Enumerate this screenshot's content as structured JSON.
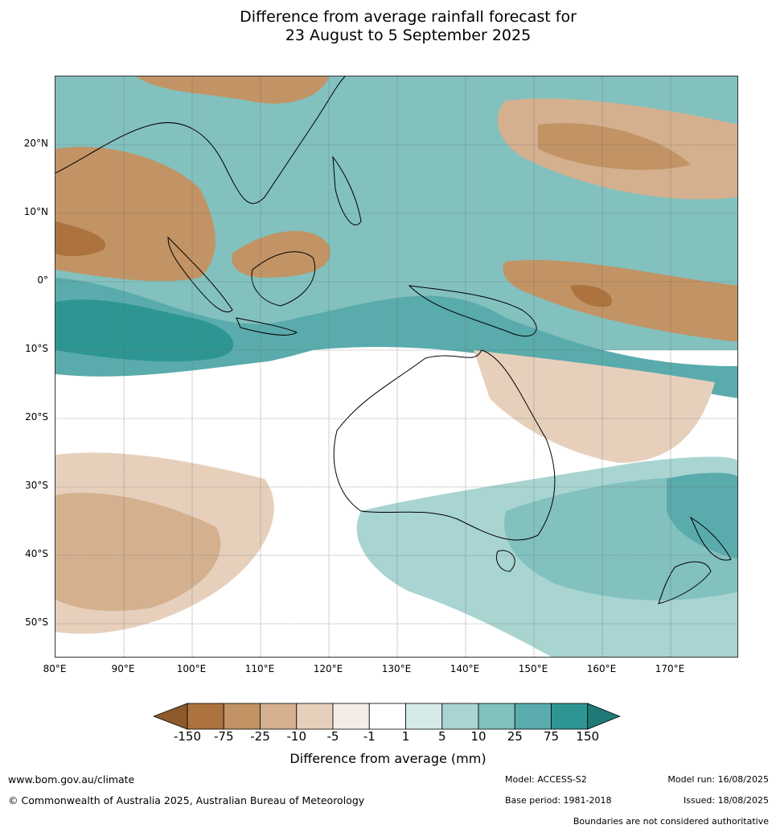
{
  "title": {
    "line1": "Difference from average rainfall forecast for",
    "line2": "23 August to 5 September 2025"
  },
  "map": {
    "lat_labels": [
      "20°N",
      "10°N",
      "0°",
      "10°S",
      "20°S",
      "30°S",
      "40°S",
      "50°S"
    ],
    "lon_labels": [
      "80°E",
      "90°E",
      "100°E",
      "110°E",
      "120°E",
      "130°E",
      "140°E",
      "150°E",
      "160°E",
      "170°E"
    ]
  },
  "legend": {
    "title": "Difference from average (mm)",
    "ticks": [
      "-150",
      "-75",
      "-25",
      "-10",
      "-5",
      "-1",
      "1",
      "5",
      "10",
      "25",
      "75",
      "150"
    ],
    "colors": [
      "#8c5a2b",
      "#ac733f",
      "#c29364",
      "#d4b08f",
      "#e6d0bc",
      "#f4ece6",
      "#ffffff",
      "#d6eae8",
      "#a8d4d1",
      "#82c1be",
      "#5aabab",
      "#2d9693",
      "#1f7a77"
    ]
  },
  "footer": {
    "website": "www.bom.gov.au/climate",
    "copyright": "© Commonwealth of Australia 2025, Australian Bureau of Meteorology",
    "model": "Model: ACCESS-S2",
    "base_period": "Base period: 1981-2018",
    "model_run": "Model run: 16/08/2025",
    "issued": "Issued: 18/08/2025",
    "disclaimer": "Boundaries are not considered authoritative"
  }
}
